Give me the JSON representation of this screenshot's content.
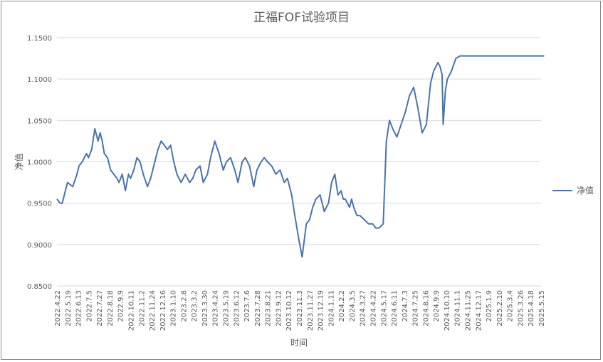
{
  "chart_data": {
    "type": "line",
    "title": "正福FOF试验项目",
    "xlabel": "时间",
    "ylabel": "净值",
    "ylim": [
      0.85,
      1.15
    ],
    "y_ticks": [
      "0.8500",
      "0.9000",
      "0.9500",
      "1.0000",
      "1.0500",
      "1.1000",
      "1.1500"
    ],
    "x_ticks": [
      "2022.4.22",
      "2022.5.19",
      "2022.6.13",
      "2022.7.5",
      "2022.7.27",
      "2022.8.18",
      "2022.9.9",
      "2022.10.11",
      "2022.11.2",
      "2022.11.24",
      "2022.12.16",
      "2023.1.10",
      "2023.2.8",
      "2023.3.2",
      "2023.3.30",
      "2023.4.24",
      "2023.5.19",
      "2023.6.12",
      "2023.7.6",
      "2023.7.28",
      "2023.8.21",
      "2023.9.12",
      "2023.10.12",
      "2023.11.3",
      "2023.11.27",
      "2023.12.19",
      "2024.1.11",
      "2024.2.2",
      "2024.3.5",
      "2024.3.27",
      "2024.4.22",
      "2024.5.17",
      "2024.6.11",
      "2024.7.3",
      "2024.7.25",
      "2024.8.16",
      "2024.9.9",
      "2024.10.10",
      "2024.11.1",
      "2024.11.25",
      "2024.12.17",
      "2025.1.9",
      "2025.2.10",
      "2025.3.4",
      "2025.3.26",
      "2025.4.18",
      "2025.5.15"
    ],
    "grid": true,
    "legend": "right",
    "series": [
      {
        "name": "净值",
        "color": "#4a74a8",
        "x_index": [
          0,
          0.3,
          0.5,
          0.8,
          1,
          1.5,
          1.9,
          2.1,
          2.4,
          2.8,
          3,
          3.3,
          3.6,
          3.9,
          4.1,
          4.3,
          4.5,
          4.8,
          5.1,
          5.4,
          5.7,
          5.9,
          6.2,
          6.5,
          6.8,
          7,
          7.3,
          7.6,
          7.9,
          8.2,
          8.6,
          8.9,
          9.2,
          9.6,
          9.9,
          10.2,
          10.5,
          10.8,
          11.1,
          11.4,
          11.8,
          12.2,
          12.6,
          12.9,
          13.2,
          13.6,
          13.9,
          14.3,
          14.6,
          15,
          15.4,
          15.8,
          16.1,
          16.5,
          16.9,
          17.2,
          17.6,
          17.9,
          18.3,
          18.7,
          19,
          19.4,
          19.7,
          20,
          20.4,
          20.8,
          21.2,
          21.6,
          21.9,
          22.3,
          22.6,
          23,
          23.3,
          23.7,
          24,
          24.3,
          24.6,
          25,
          25.4,
          25.8,
          26.1,
          26.4,
          26.7,
          27,
          27.2,
          27.4,
          27.6,
          27.8,
          28,
          28.2,
          28.5,
          28.8,
          29.2,
          29.6,
          30,
          30.3,
          30.6,
          31,
          31.3,
          31.6,
          31.9,
          32.3,
          32.7,
          33.1,
          33.5,
          33.9,
          34.3,
          34.7,
          35.1,
          35.5,
          35.8,
          36.2,
          36.4,
          36.6,
          36.7,
          36.9,
          37.1,
          37.5,
          37.9,
          38.3,
          38.7,
          39.1,
          39.5,
          39.9,
          40.3,
          40.7,
          41,
          41.2,
          41.4,
          41.7,
          42,
          42.3,
          42.6,
          42.9,
          43.2,
          43.5,
          43.8,
          44.1,
          44.3,
          44.6,
          44.9,
          45.2,
          45.6,
          45.9,
          46.3
        ],
        "values": [
          0.955,
          0.95,
          0.95,
          0.965,
          0.975,
          0.97,
          0.985,
          0.995,
          1.0,
          1.01,
          1.005,
          1.015,
          1.04,
          1.025,
          1.035,
          1.025,
          1.01,
          1.005,
          0.99,
          0.985,
          0.98,
          0.975,
          0.985,
          0.965,
          0.985,
          0.98,
          0.99,
          1.005,
          1.0,
          0.985,
          0.97,
          0.98,
          0.995,
          1.015,
          1.025,
          1.02,
          1.015,
          1.02,
          1.0,
          0.985,
          0.975,
          0.985,
          0.975,
          0.98,
          0.99,
          0.995,
          0.975,
          0.985,
          1.005,
          1.025,
          1.01,
          0.99,
          1.0,
          1.005,
          0.99,
          0.975,
          1.0,
          1.005,
          0.995,
          0.97,
          0.99,
          1.0,
          1.005,
          1.0,
          0.995,
          0.985,
          0.99,
          0.975,
          0.98,
          0.96,
          0.935,
          0.905,
          0.885,
          0.925,
          0.93,
          0.945,
          0.955,
          0.96,
          0.94,
          0.95,
          0.975,
          0.985,
          0.96,
          0.965,
          0.955,
          0.955,
          0.95,
          0.945,
          0.955,
          0.945,
          0.935,
          0.935,
          0.93,
          0.925,
          0.925,
          0.92,
          0.92,
          0.925,
          1.025,
          1.05,
          1.04,
          1.03,
          1.045,
          1.06,
          1.08,
          1.09,
          1.065,
          1.035,
          1.045,
          1.095,
          1.11,
          1.12,
          1.115,
          1.105,
          1.045,
          1.085,
          1.1,
          1.11,
          1.125,
          1.128,
          1.128,
          1.128,
          1.128,
          1.128,
          1.128,
          1.128,
          1.128,
          1.128,
          1.128,
          1.128,
          1.128,
          1.128,
          1.128,
          1.128,
          1.128,
          1.128,
          1.128,
          1.128,
          1.128,
          1.128,
          1.128,
          1.128,
          1.128,
          1.128,
          1.128
        ]
      }
    ]
  }
}
